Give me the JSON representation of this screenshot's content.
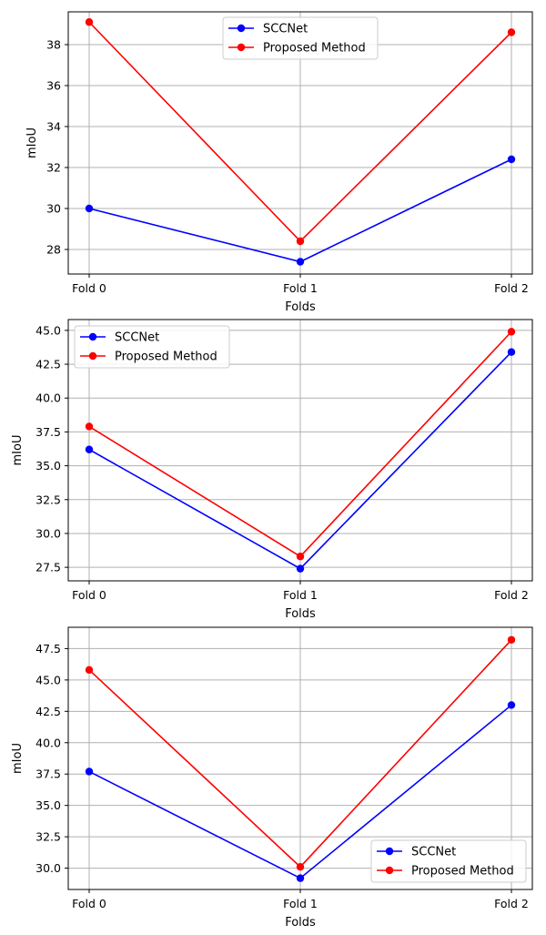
{
  "chart_data": [
    {
      "type": "line",
      "categories": [
        "Fold 0",
        "Fold 1",
        "Fold 2"
      ],
      "xlabel": "Folds",
      "ylabel": "mIoU",
      "ylim": [
        26.8,
        39.6
      ],
      "yticks": [
        "28",
        "30",
        "32",
        "34",
        "36",
        "38"
      ],
      "ytick_values": [
        28,
        30,
        32,
        34,
        36,
        38
      ],
      "grid": true,
      "legend_position": "upper-center",
      "series": [
        {
          "name": "SCCNet",
          "values": [
            30.0,
            27.4,
            32.4
          ],
          "color": "#0000ff"
        },
        {
          "name": "Proposed Method",
          "values": [
            39.1,
            28.4,
            38.6
          ],
          "color": "#ff0000"
        }
      ]
    },
    {
      "type": "line",
      "categories": [
        "Fold 0",
        "Fold 1",
        "Fold 2"
      ],
      "xlabel": "Folds",
      "ylabel": "mIoU",
      "ylim": [
        26.5,
        45.8
      ],
      "yticks": [
        "27.5",
        "30.0",
        "32.5",
        "35.0",
        "37.5",
        "40.0",
        "42.5",
        "45.0"
      ],
      "ytick_values": [
        27.5,
        30.0,
        32.5,
        35.0,
        37.5,
        40.0,
        42.5,
        45.0
      ],
      "grid": true,
      "legend_position": "upper-left",
      "series": [
        {
          "name": "SCCNet",
          "values": [
            36.2,
            27.4,
            43.4
          ],
          "color": "#0000ff"
        },
        {
          "name": "Proposed Method",
          "values": [
            37.9,
            28.3,
            44.9
          ],
          "color": "#ff0000"
        }
      ]
    },
    {
      "type": "line",
      "categories": [
        "Fold 0",
        "Fold 1",
        "Fold 2"
      ],
      "xlabel": "Folds",
      "ylabel": "mIoU",
      "ylim": [
        28.3,
        49.2
      ],
      "yticks": [
        "30.0",
        "32.5",
        "35.0",
        "37.5",
        "40.0",
        "42.5",
        "45.0",
        "47.5"
      ],
      "ytick_values": [
        30.0,
        32.5,
        35.0,
        37.5,
        40.0,
        42.5,
        45.0,
        47.5
      ],
      "grid": true,
      "legend_position": "lower-right",
      "series": [
        {
          "name": "SCCNet",
          "values": [
            37.7,
            29.2,
            43.0
          ],
          "color": "#0000ff"
        },
        {
          "name": "Proposed Method",
          "values": [
            45.8,
            30.1,
            48.2
          ],
          "color": "#ff0000"
        }
      ]
    }
  ]
}
